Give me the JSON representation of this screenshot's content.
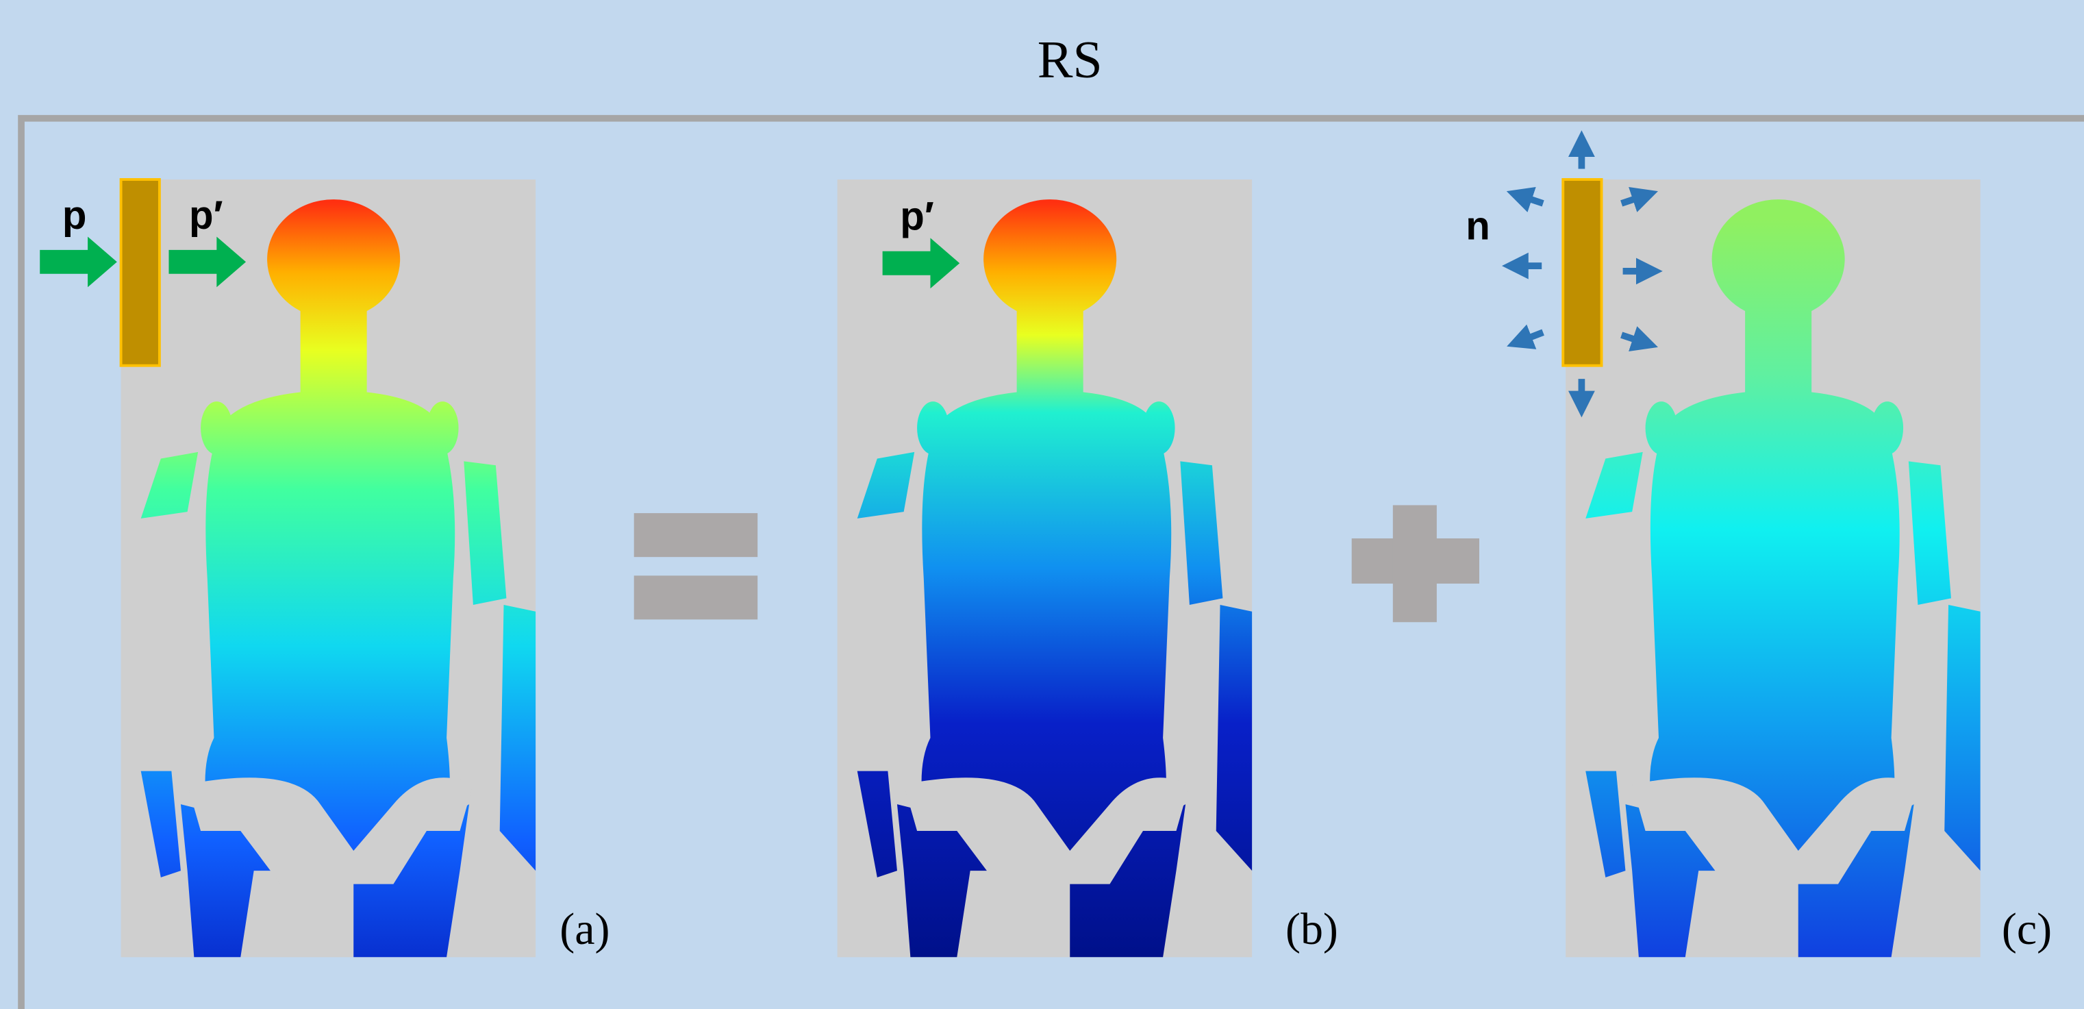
{
  "title": "RS",
  "panels": [
    {
      "label": "(a)",
      "arrows": [
        {
          "label": "p"
        },
        {
          "label": "p′"
        }
      ]
    },
    {
      "label": "(b)",
      "arrows": [
        {
          "label": "p′"
        }
      ]
    },
    {
      "label": "(c)",
      "arrows": [
        {
          "label": "n"
        }
      ]
    }
  ]
}
